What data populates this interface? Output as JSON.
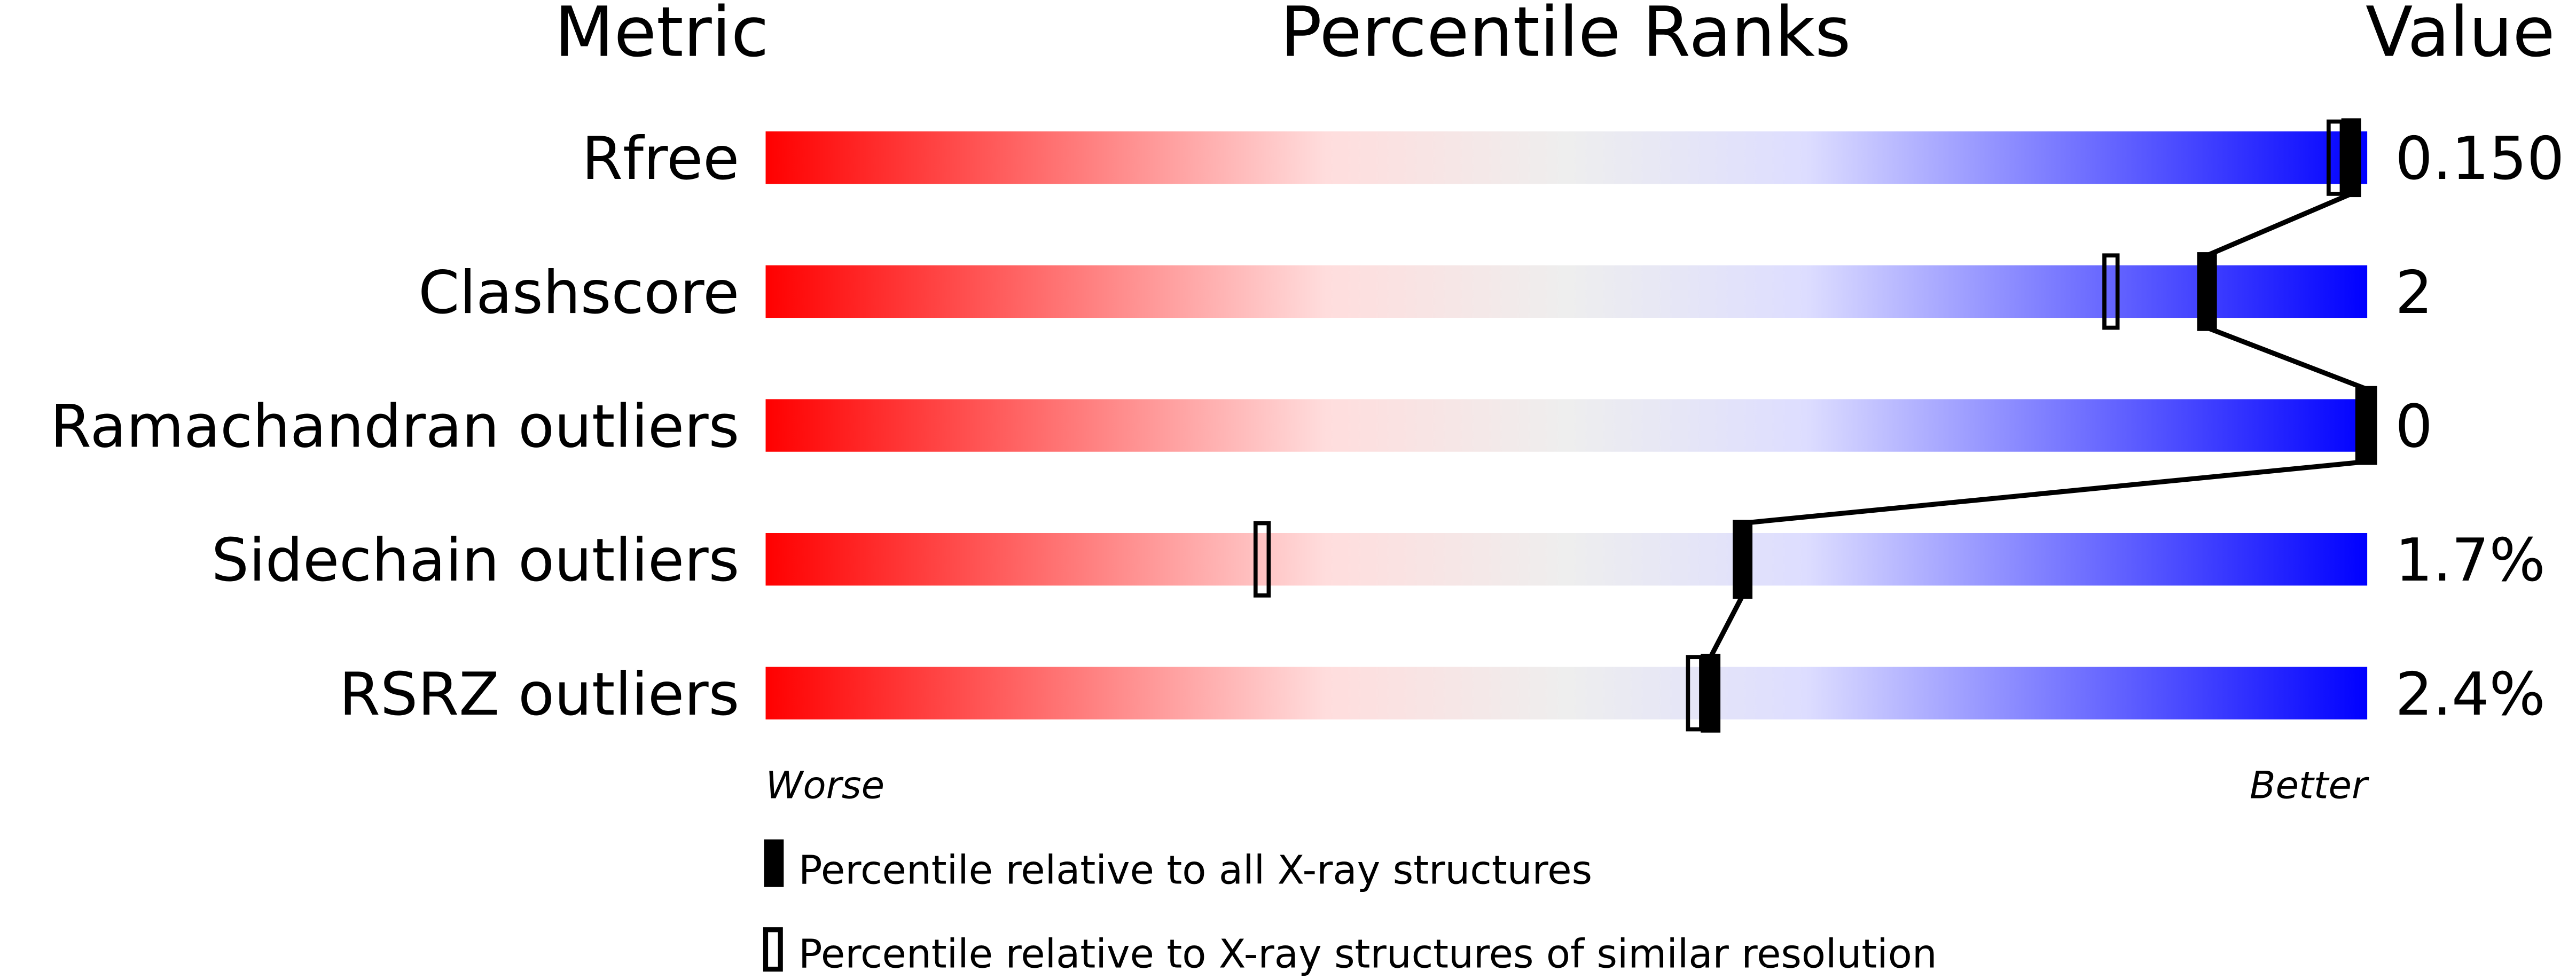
{
  "chart_data": {
    "type": "percentile-slider",
    "headers": {
      "metric": "Metric",
      "ranks": "Percentile Ranks",
      "value": "Value"
    },
    "axis": {
      "min": 0,
      "max": 100,
      "left_label": "Worse",
      "right_label": "Better"
    },
    "gradient_colors": [
      "#ff0000",
      "#ffdddd",
      "#eeeeee",
      "#ddddff",
      "#0000ff"
    ],
    "rows": [
      {
        "metric": "Rfree",
        "value": "0.150",
        "percentile_all": 99,
        "percentile_similar": 98
      },
      {
        "metric": "Clashscore",
        "value": "2",
        "percentile_all": 90,
        "percentile_similar": 84
      },
      {
        "metric": "Ramachandran outliers",
        "value": "0",
        "percentile_all": 100,
        "percentile_similar": 100
      },
      {
        "metric": "Sidechain outliers",
        "value": "1.7%",
        "percentile_all": 61,
        "percentile_similar": 31
      },
      {
        "metric": "RSRZ outliers",
        "value": "2.4%",
        "percentile_all": 59,
        "percentile_similar": 58
      }
    ],
    "legend": {
      "all": "Percentile relative to all X-ray structures",
      "similar": "Percentile relative to X-ray structures of similar resolution"
    }
  }
}
